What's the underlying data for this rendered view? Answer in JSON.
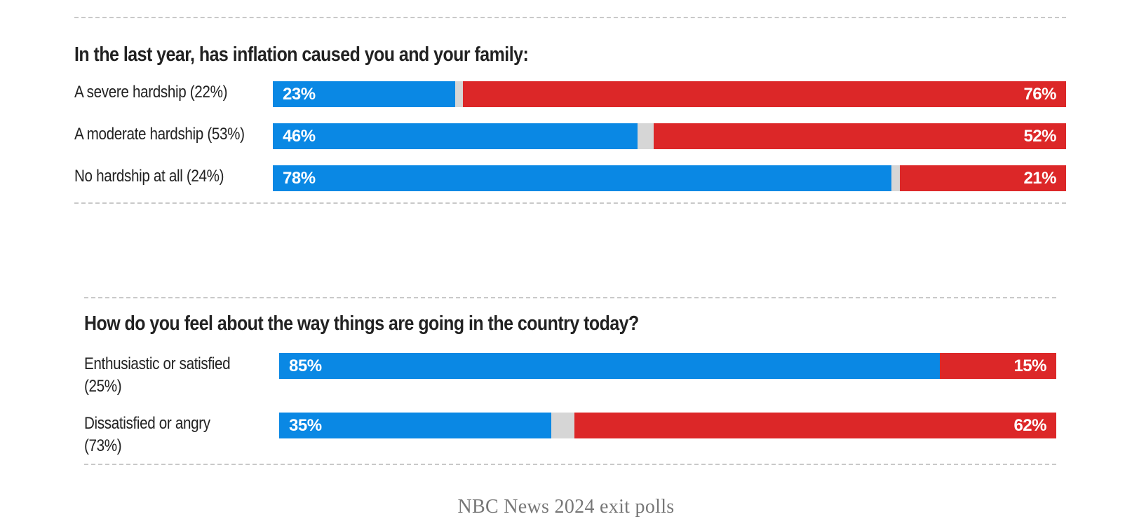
{
  "colors": {
    "dem": "#0a88e4",
    "rep": "#dc2728",
    "other": "#d6d6d6"
  },
  "chart_data": [
    {
      "type": "bar",
      "orientation": "horizontal",
      "stacked": true,
      "title": "In the last year, has inflation caused you and your family:",
      "categories": [
        "A severe hardship (22%)",
        "A moderate hardship (53%)",
        "No hardship at all (24%)"
      ],
      "series": [
        {
          "values": [
            23,
            46,
            78
          ],
          "color": "#0a88e4"
        },
        {
          "values": [
            76,
            52,
            21
          ],
          "color": "#dc2728"
        }
      ],
      "value_labels": {
        "left": [
          "23%",
          "46%",
          "78%"
        ],
        "right": [
          "76%",
          "52%",
          "21%"
        ]
      },
      "xlim": [
        0,
        100
      ]
    },
    {
      "type": "bar",
      "orientation": "horizontal",
      "stacked": true,
      "title": "How do you feel about the way things are going in the country today?",
      "categories": [
        "Enthusiastic or satisfied (25%)",
        "Dissatisfied or angry (73%)"
      ],
      "series": [
        {
          "values": [
            85,
            35
          ],
          "color": "#0a88e4"
        },
        {
          "values": [
            15,
            62
          ],
          "color": "#dc2728"
        }
      ],
      "value_labels": {
        "left": [
          "85%",
          "35%"
        ],
        "right": [
          "15%",
          "62%"
        ]
      },
      "xlim": [
        0,
        100
      ]
    }
  ],
  "source": "NBC News 2024 exit polls"
}
